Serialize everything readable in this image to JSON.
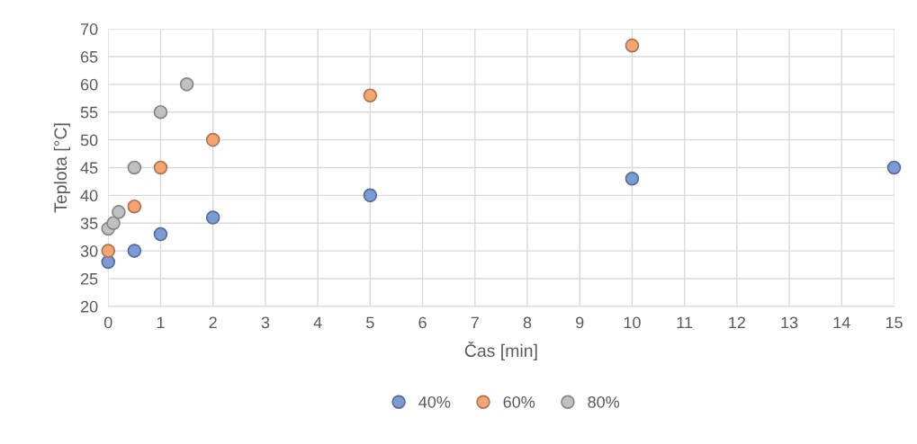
{
  "chart_data": {
    "type": "scatter",
    "xlabel": "Čas [min]",
    "ylabel": "Teplota [°C]",
    "xlim": [
      0,
      15
    ],
    "xticks": [
      0,
      1,
      2,
      3,
      4,
      5,
      6,
      7,
      8,
      9,
      10,
      11,
      12,
      13,
      14,
      15
    ],
    "ylim": [
      20,
      70
    ],
    "yticks": [
      20,
      25,
      30,
      35,
      40,
      45,
      50,
      55,
      60,
      65,
      70
    ],
    "grid": true,
    "legend": "bottom",
    "marker": "circle",
    "series": [
      {
        "name": "40%",
        "color": "#7b9bd6",
        "x": [
          0,
          0.5,
          1,
          2,
          5,
          10,
          15
        ],
        "values": [
          28,
          30,
          33,
          36,
          40,
          43,
          45
        ]
      },
      {
        "name": "60%",
        "color": "#f4a572",
        "x": [
          0,
          0.5,
          1,
          2,
          5,
          10
        ],
        "values": [
          30,
          38,
          45,
          50,
          58,
          67
        ]
      },
      {
        "name": "80%",
        "color": "#c0c0c0",
        "x": [
          0,
          0.1,
          0.2,
          0.5,
          1,
          1.5
        ],
        "values": [
          34,
          35,
          37,
          45,
          55,
          60
        ]
      }
    ]
  }
}
